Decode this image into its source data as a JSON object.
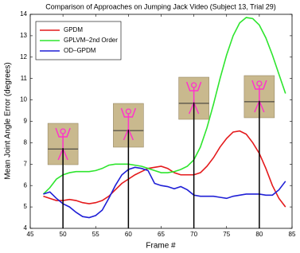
{
  "chart_data": {
    "type": "line",
    "title": "Comparison of Approaches on Jumping Jack Video (Subject 13, Trial 29)",
    "x_label": "Frame #",
    "y_label": "Mean Joint Angle Error (degrees)",
    "x": [
      47,
      48,
      49,
      50,
      51,
      52,
      53,
      54,
      55,
      56,
      57,
      58,
      59,
      60,
      61,
      62,
      63,
      64,
      65,
      66,
      67,
      68,
      69,
      70,
      71,
      72,
      73,
      74,
      75,
      76,
      77,
      78,
      79,
      80,
      81,
      82,
      83,
      84
    ],
    "series": [
      {
        "name": "GPDM",
        "color": "#e41a1c",
        "values": [
          5.5,
          5.4,
          5.3,
          5.3,
          5.35,
          5.3,
          5.2,
          5.15,
          5.2,
          5.3,
          5.5,
          5.8,
          6.1,
          6.3,
          6.5,
          6.65,
          6.8,
          6.85,
          6.9,
          6.8,
          6.6,
          6.5,
          6.5,
          6.5,
          6.6,
          6.9,
          7.3,
          7.8,
          8.2,
          8.5,
          8.55,
          8.4,
          8.0,
          7.5,
          6.8,
          6.0,
          5.4,
          5.0
        ]
      },
      {
        "name": "GPLVM–2nd Order",
        "color": "#2ee52e",
        "values": [
          5.6,
          5.9,
          6.3,
          6.5,
          6.6,
          6.65,
          6.65,
          6.65,
          6.7,
          6.8,
          6.95,
          7.0,
          7.0,
          7.0,
          6.95,
          6.9,
          6.8,
          6.7,
          6.6,
          6.6,
          6.65,
          6.75,
          6.9,
          7.2,
          7.8,
          8.7,
          9.8,
          11.0,
          12.1,
          13.0,
          13.6,
          13.85,
          13.8,
          13.5,
          12.9,
          12.1,
          11.2,
          10.3
        ]
      },
      {
        "name": "OD–GPDM",
        "color": "#1f1fd6",
        "values": [
          5.6,
          5.7,
          5.4,
          5.15,
          5.0,
          4.75,
          4.55,
          4.5,
          4.6,
          4.85,
          5.4,
          6.0,
          6.5,
          6.75,
          6.85,
          6.8,
          6.7,
          6.1,
          6.0,
          5.95,
          5.85,
          5.95,
          5.8,
          5.55,
          5.5,
          5.5,
          5.5,
          5.45,
          5.4,
          5.5,
          5.55,
          5.6,
          5.6,
          5.6,
          5.55,
          5.55,
          5.8,
          6.2
        ]
      }
    ],
    "annotation_frames": [
      50,
      60,
      70,
      80
    ],
    "xlim": [
      45,
      85
    ],
    "xticks": [
      45,
      50,
      55,
      60,
      65,
      70,
      75,
      80,
      85
    ],
    "ylim": [
      4,
      14
    ],
    "yticks": [
      4,
      5,
      6,
      7,
      8,
      9,
      10,
      11,
      12,
      13,
      14
    ],
    "legend": "upper left"
  }
}
